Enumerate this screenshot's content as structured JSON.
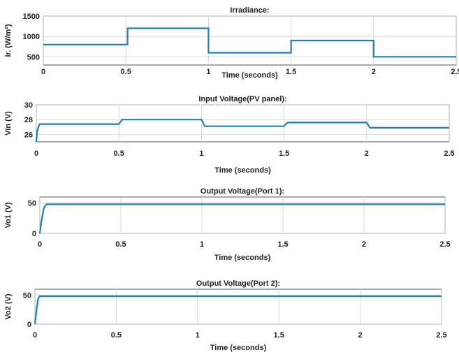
{
  "colors": {
    "series": "#1f7fb5",
    "axis": "#555555",
    "grid": "#d0d0d0",
    "text": "#222222"
  },
  "chart_data": [
    {
      "type": "line",
      "title": "Irradiance:",
      "xlabel": "Time (seconds)",
      "ylabel": "Ir. (W/m²)",
      "xlim": [
        0,
        2.5
      ],
      "ylim": [
        300,
        1500
      ],
      "grid": true,
      "xticks": [
        0,
        0.5,
        1,
        1.5,
        2,
        2.5
      ],
      "xtick_labels": [
        "0",
        "0.5",
        "1",
        "1.5",
        "2",
        "2.5"
      ],
      "yticks": [
        500,
        1000,
        1500
      ],
      "ytick_labels": [
        "500",
        "1000",
        "1500"
      ],
      "series": [
        {
          "x": [
            0,
            0.51,
            0.51,
            1.0,
            1.0,
            1.5,
            1.5,
            2.0,
            2.0,
            2.5
          ],
          "y": [
            800,
            800,
            1200,
            1200,
            600,
            600,
            900,
            900,
            500,
            500
          ]
        }
      ]
    },
    {
      "type": "line",
      "title": "Input Voltage(PV panel):",
      "xlabel": "Time (seconds)",
      "ylabel": "Vin (V)",
      "xlim": [
        0,
        2.5
      ],
      "ylim": [
        25,
        30
      ],
      "grid": true,
      "xticks": [
        0,
        0.5,
        1,
        1.5,
        2,
        2.5
      ],
      "xtick_labels": [
        "0",
        "0.5",
        "1",
        "1.5",
        "2",
        "2.5"
      ],
      "yticks": [
        26,
        28,
        30
      ],
      "ytick_labels": [
        "26",
        "28",
        "30"
      ],
      "series": [
        {
          "x": [
            0,
            0.005,
            0.02,
            0.5,
            0.52,
            1.0,
            1.02,
            1.5,
            1.52,
            2.0,
            2.02,
            2.5
          ],
          "y": [
            25,
            26.5,
            27.4,
            27.4,
            28.0,
            28.0,
            27.1,
            27.1,
            27.6,
            27.6,
            26.9,
            26.9
          ]
        }
      ]
    },
    {
      "type": "line",
      "title": "Output Voltage(Port 1):",
      "xlabel": "Time (seconds)",
      "ylabel": "Vo1 (V)",
      "xlim": [
        0,
        2.5
      ],
      "ylim": [
        0,
        60
      ],
      "grid": true,
      "xticks": [
        0,
        0.5,
        1,
        1.5,
        2,
        2.5
      ],
      "xtick_labels": [
        "0",
        "0.5",
        "1",
        "1.5",
        "2",
        "2.5"
      ],
      "yticks": [
        0,
        50
      ],
      "ytick_labels": [
        "0",
        "50"
      ],
      "series": [
        {
          "x": [
            0,
            0.01,
            0.025,
            0.04,
            2.5
          ],
          "y": [
            0,
            20,
            42,
            48,
            48
          ]
        }
      ]
    },
    {
      "type": "line",
      "title": "Output Voltage(Port 2):",
      "xlabel": "Time (seconds)",
      "ylabel": "Vo2 (V)",
      "xlim": [
        0,
        2.5
      ],
      "ylim": [
        0,
        60
      ],
      "grid": true,
      "xticks": [
        0,
        0.5,
        1,
        1.5,
        2,
        2.5
      ],
      "xtick_labels": [
        "0",
        "0.5",
        "1",
        "1.5",
        "2",
        "2.5"
      ],
      "yticks": [
        0,
        50
      ],
      "ytick_labels": [
        "0",
        "50"
      ],
      "series": [
        {
          "x": [
            0,
            0.01,
            0.02,
            0.03,
            2.5
          ],
          "y": [
            0,
            25,
            44,
            48,
            48
          ]
        }
      ]
    }
  ]
}
